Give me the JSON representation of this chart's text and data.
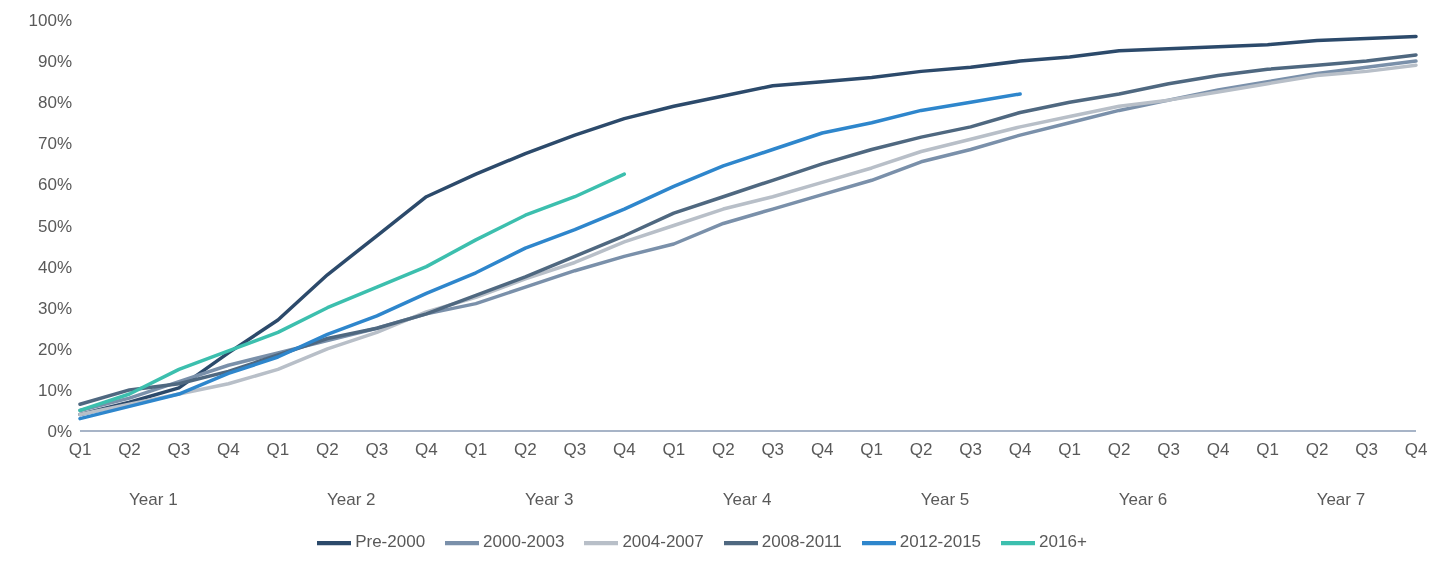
{
  "chart_data": {
    "type": "line",
    "categories": [
      "Q1",
      "Q2",
      "Q3",
      "Q4",
      "Q1",
      "Q2",
      "Q3",
      "Q4",
      "Q1",
      "Q2",
      "Q3",
      "Q4",
      "Q1",
      "Q2",
      "Q3",
      "Q4",
      "Q1",
      "Q2",
      "Q3",
      "Q4",
      "Q1",
      "Q2",
      "Q3",
      "Q4",
      "Q1",
      "Q2",
      "Q3",
      "Q4"
    ],
    "annotations": [
      "Year 1",
      "Year 2",
      "Year 3",
      "Year 4",
      "Year 5",
      "Year 6",
      "Year 7"
    ],
    "series": [
      {
        "name": "Pre-2000",
        "color": "#2c4a6b",
        "values": [
          4,
          7,
          10.5,
          19,
          27,
          38,
          47.5,
          57,
          62.5,
          67.5,
          72,
          76,
          79,
          81.5,
          84,
          85,
          86,
          87.5,
          88.5,
          90,
          91,
          92.5,
          93,
          93.5,
          94,
          95,
          95.5,
          96
        ]
      },
      {
        "name": "2000-2003",
        "color": "#7a90aa",
        "values": [
          5,
          8,
          12,
          16,
          19,
          22,
          25,
          28.5,
          31,
          35,
          39,
          42.5,
          45.5,
          50.5,
          54,
          57.5,
          61,
          65.5,
          68.5,
          72,
          75,
          78,
          80.5,
          83,
          85,
          87,
          88.5,
          90
        ]
      },
      {
        "name": "2004-2007",
        "color": "#b8bfc8",
        "values": [
          4,
          6.5,
          9,
          11.5,
          15,
          20,
          24,
          29,
          32.5,
          37,
          41,
          46,
          50,
          54,
          57,
          60.5,
          64,
          68,
          71,
          74,
          76.5,
          79,
          80.5,
          82.5,
          84.5,
          86.5,
          87.5,
          89
        ]
      },
      {
        "name": "2008-2011",
        "color": "#4f6880",
        "values": [
          6.5,
          10,
          11.5,
          14.5,
          18.5,
          22.5,
          25,
          28.5,
          33,
          37.5,
          42.5,
          47.5,
          53,
          57,
          61,
          65,
          68.5,
          71.5,
          74,
          77.5,
          80,
          82,
          84.5,
          86.5,
          88,
          89,
          90,
          91.5
        ]
      },
      {
        "name": "2012-2015",
        "color": "#2e86cc",
        "values": [
          3,
          6,
          9,
          14,
          18,
          23.5,
          28,
          33.5,
          38.5,
          44.5,
          49,
          54,
          59.5,
          64.5,
          68.5,
          72.5,
          75,
          78,
          80,
          82,
          null,
          null,
          null,
          null,
          null,
          null,
          null,
          null
        ]
      },
      {
        "name": "2016+",
        "color": "#3cbfae",
        "values": [
          5,
          9,
          15,
          19.5,
          24,
          30,
          35,
          40,
          46.5,
          52.5,
          57,
          62.5,
          null,
          null,
          null,
          null,
          null,
          null,
          null,
          null,
          null,
          null,
          null,
          null,
          null,
          null,
          null,
          null
        ]
      }
    ],
    "ylim": [
      0,
      100
    ],
    "yticks": [
      {
        "value": 0,
        "label": "0%"
      },
      {
        "value": 10,
        "label": "10%"
      },
      {
        "value": 20,
        "label": "20%"
      },
      {
        "value": 30,
        "label": "30%"
      },
      {
        "value": 40,
        "label": "40%"
      },
      {
        "value": 50,
        "label": "50%"
      },
      {
        "value": 60,
        "label": "60%"
      },
      {
        "value": 70,
        "label": "70%"
      },
      {
        "value": 80,
        "label": "80%"
      },
      {
        "value": 90,
        "label": "90%"
      },
      {
        "value": 100,
        "label": "100%"
      }
    ],
    "grid": false,
    "legend": "bottom",
    "marker": "none",
    "line_style": "solid"
  }
}
